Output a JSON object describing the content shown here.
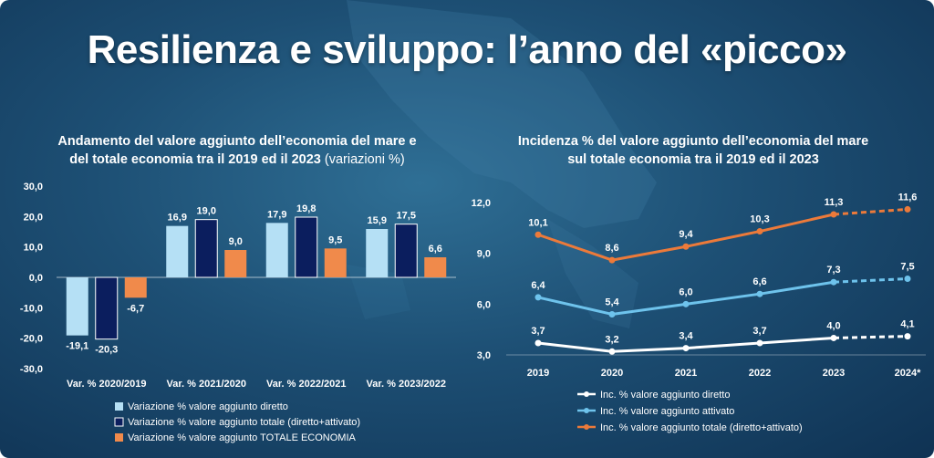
{
  "slide_title": "Resilienza e sviluppo: l’anno del «picco»",
  "colors": {
    "light_blue": "#b5e0f5",
    "navy": "#0b1e5e",
    "orange": "#f08a4b",
    "white": "#ffffff",
    "line_blue": "#6ec3ec",
    "line_orange": "#ec7a3a"
  },
  "chart_data": [
    {
      "type": "bar",
      "title_bold": "Andamento del valore aggiunto dell’economia del mare e",
      "title_bold_2": "del totale economia tra il 2019 ed il 2023",
      "title_light": "(variazioni %)",
      "categories": [
        "Var. % 2020/2019",
        "Var. % 2021/2020",
        "Var. % 2022/2021",
        "Var. % 2023/2022"
      ],
      "series": [
        {
          "name": "Variazione % valore aggiunto diretto",
          "values": [
            -19.1,
            16.9,
            17.9,
            15.9
          ],
          "labels": [
            "-19,1",
            "16,9",
            "17,9",
            "15,9"
          ]
        },
        {
          "name": "Variazione % valore aggiunto totale (diretto+attivato)",
          "values": [
            -20.3,
            19.0,
            19.8,
            17.5
          ],
          "labels": [
            "-20,3",
            "19,0",
            "19,8",
            "17,5"
          ]
        },
        {
          "name": "Variazione % valore aggiunto TOTALE ECONOMIA",
          "values": [
            -6.7,
            9.0,
            9.5,
            6.6
          ],
          "labels": [
            "-6,7",
            "9,0",
            "9,5",
            "6,6"
          ]
        }
      ],
      "ylim": [
        -30,
        30
      ],
      "yticks": [
        30,
        20,
        10,
        0,
        -10,
        -20,
        -30
      ],
      "ytick_labels": [
        "30,0",
        "20,0",
        "10,0",
        "0,0",
        "-10,0",
        "-20,0",
        "-30,0"
      ],
      "legend_position": "bottom"
    },
    {
      "type": "line",
      "title": "Incidenza % del valore aggiunto dell’economia del mare",
      "title_2": "sul totale economia tra il 2019 ed il 2023",
      "x": [
        "2019",
        "2020",
        "2021",
        "2022",
        "2023",
        "2024*"
      ],
      "series": [
        {
          "name": "Inc. % valore aggiunto diretto",
          "values": [
            3.7,
            3.2,
            3.4,
            3.7,
            4.0,
            4.1
          ],
          "labels": [
            "3,7",
            "3,2",
            "3,4",
            "3,7",
            "4,0",
            "4,1"
          ]
        },
        {
          "name": "Inc. % valore aggiunto attivato",
          "values": [
            6.4,
            5.4,
            6.0,
            6.6,
            7.3,
            7.5
          ],
          "labels": [
            "6,4",
            "5,4",
            "6,0",
            "6,6",
            "7,3",
            "7,5"
          ]
        },
        {
          "name": "Inc. % valore aggiunto totale (diretto+attivato)",
          "values": [
            10.1,
            8.6,
            9.4,
            10.3,
            11.3,
            11.6
          ],
          "labels": [
            "10,1",
            "8,6",
            "9,4",
            "10,3",
            "11,3",
            "11,6"
          ]
        }
      ],
      "dashed_from_index": 4,
      "ylim": [
        3,
        12
      ],
      "yticks": [
        12,
        9,
        6,
        3
      ],
      "ytick_labels": [
        "12,0",
        "9,0",
        "6,0",
        "3,0"
      ],
      "legend_position": "bottom"
    }
  ]
}
